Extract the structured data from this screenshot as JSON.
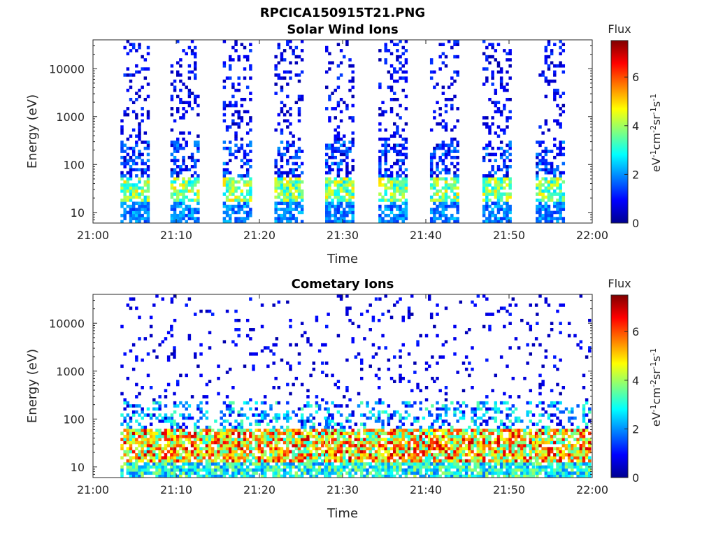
{
  "figure_title": "RPCICA150915T21.PNG",
  "chart_data": [
    {
      "type": "heatmap",
      "title": "Solar Wind Ions",
      "xlabel": "Time",
      "ylabel": "Energy (eV)",
      "x_ticks": [
        "21:00",
        "21:10",
        "21:20",
        "21:30",
        "21:40",
        "21:50",
        "22:00"
      ],
      "xlim": [
        "21:00",
        "22:00"
      ],
      "y_scale": "log",
      "y_ticks": [
        10,
        100,
        1000,
        10000
      ],
      "y_tick_labels": [
        "10",
        "100",
        "1000",
        "10000"
      ],
      "ylim": [
        6,
        40000
      ],
      "colorbar": {
        "title": "Flux",
        "label": "eV-1cm-2sr-1s-1",
        "range": [
          0,
          7.5
        ],
        "ticks": [
          "0",
          "2",
          "4",
          "6"
        ],
        "colormap": "jet"
      },
      "scan_columns_min": [
        3.3,
        9.3,
        15.6,
        21.8,
        27.9,
        34.3,
        40.5,
        46.8,
        53.2
      ],
      "scan_width_min": 3.4,
      "peak_energy_eV": 30,
      "peak_flux": 5
    },
    {
      "type": "heatmap",
      "title": "Cometary Ions",
      "xlabel": "Time",
      "ylabel": "Energy (eV)",
      "x_ticks": [
        "21:00",
        "21:10",
        "21:20",
        "21:30",
        "21:40",
        "21:50",
        "22:00"
      ],
      "xlim": [
        "21:00",
        "22:00"
      ],
      "y_scale": "log",
      "y_ticks": [
        10,
        100,
        1000,
        10000
      ],
      "y_tick_labels": [
        "10",
        "100",
        "1000",
        "10000"
      ],
      "ylim": [
        6,
        40000
      ],
      "colorbar": {
        "title": "Flux",
        "label": "eV-1cm-2sr-1s-1",
        "range": [
          0,
          7.5
        ],
        "ticks": [
          "0",
          "2",
          "4",
          "6"
        ],
        "colormap": "jet"
      },
      "scan_columns_min": [
        3.3,
        9.3,
        15.6,
        21.8,
        27.9,
        34.3,
        40.5,
        46.8,
        53.2
      ],
      "scan_width_min": 6.5,
      "peak_energy_eV": 30,
      "peak_flux": 7
    }
  ]
}
